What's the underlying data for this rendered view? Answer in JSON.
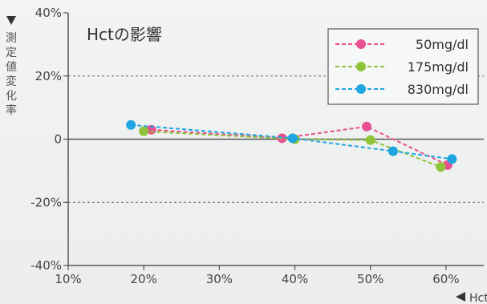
{
  "chart_data": {
    "type": "line",
    "title": "Hctの影響",
    "ylabel": "測定値変化率",
    "xlabel": "Hct",
    "x_ticks": [
      "10%",
      "20%",
      "30%",
      "40%",
      "50%",
      "60%"
    ],
    "y_ticks": [
      "-40%",
      "-20%",
      "0",
      "20%",
      "40%"
    ],
    "xlim": [
      10,
      65
    ],
    "ylim": [
      -40,
      40
    ],
    "legend_position": "top-right",
    "grid": "dashed horizontal at ±20%",
    "series": [
      {
        "name": "50mg/dl",
        "color": "#e9508f",
        "points": [
          [
            21,
            3
          ],
          [
            38.3,
            0.3
          ],
          [
            49.5,
            4
          ],
          [
            60.2,
            -8.2
          ]
        ]
      },
      {
        "name": "175mg/dl",
        "color": "#8fc43a",
        "points": [
          [
            20,
            2.5
          ],
          [
            40,
            0
          ],
          [
            50,
            -0.3
          ],
          [
            59.3,
            -8.8
          ]
        ]
      },
      {
        "name": "830mg/dl",
        "color": "#1fa6e0",
        "points": [
          [
            18.3,
            4.5
          ],
          [
            39.7,
            0.3
          ],
          [
            53,
            -3.8
          ],
          [
            60.8,
            -6.3
          ]
        ]
      }
    ]
  }
}
